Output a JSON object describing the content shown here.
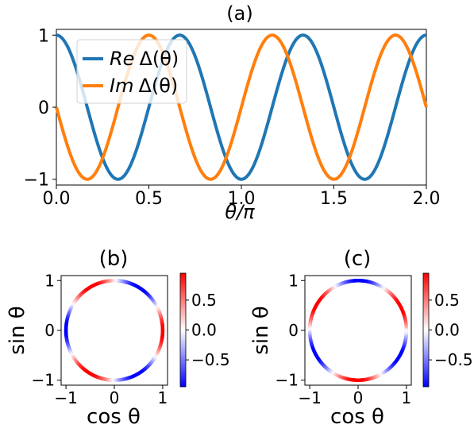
{
  "chart_data": [
    {
      "panel": "(a)",
      "type": "line",
      "title": "(a)",
      "xlabel": "θ/π",
      "ylabel": "",
      "xlim": [
        0,
        2
      ],
      "ylim": [
        -1.08,
        1.08
      ],
      "xticks": [
        "0.0",
        "0.5",
        "1.0",
        "1.5",
        "2.0"
      ],
      "yticks": [
        "−1",
        "0",
        "1"
      ],
      "legend_position": "top-left",
      "x_function": "theta_over_pi in [0,2]",
      "series": [
        {
          "name": "Re Δ(θ)",
          "name_prefix": "Re",
          "name_suffix": "Δ(θ)",
          "expression": "cos(3θ)",
          "color": "#1f77b4"
        },
        {
          "name": "Im Δ(θ)",
          "name_prefix": "Im",
          "name_suffix": "Δ(θ)",
          "expression": "-sin(3θ)",
          "color": "#ff7f0e"
        }
      ]
    },
    {
      "panel": "(b)",
      "type": "scatter",
      "title": "(b)",
      "xlabel": "cos θ",
      "ylabel": "sin θ",
      "xlim": [
        -1.1,
        1.1
      ],
      "ylim": [
        -1.1,
        1.1
      ],
      "xticks": [
        "−1",
        "0",
        "1"
      ],
      "yticks": [
        "−1",
        "0",
        "1"
      ],
      "colorbar_ticks": [
        "0.5",
        "0.0",
        "−0.5"
      ],
      "colorbar_range": [
        -0.95,
        0.95
      ],
      "color_value": "cos(3θ)",
      "colormap": "bwr"
    },
    {
      "panel": "(c)",
      "type": "scatter",
      "title": "(c)",
      "xlabel": "cos θ",
      "ylabel": "sin θ",
      "xlim": [
        -1.1,
        1.1
      ],
      "ylim": [
        -1.1,
        1.1
      ],
      "xticks": [
        "−1",
        "0",
        "1"
      ],
      "yticks": [
        "−1",
        "0",
        "1"
      ],
      "colorbar_ticks": [
        "0.5",
        "0.0",
        "−0.5"
      ],
      "colorbar_range": [
        -0.95,
        0.95
      ],
      "color_value": "sin(3θ)",
      "colormap": "bwr"
    }
  ]
}
